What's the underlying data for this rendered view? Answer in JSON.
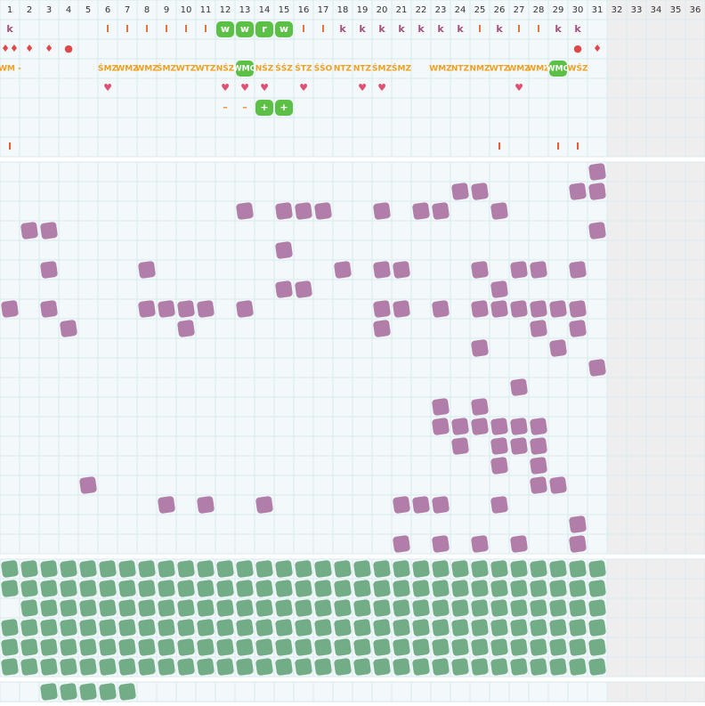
{
  "columns": [
    1,
    2,
    3,
    4,
    5,
    6,
    7,
    8,
    9,
    10,
    11,
    12,
    13,
    14,
    15,
    16,
    17,
    18,
    19,
    20,
    21,
    22,
    23,
    24,
    25,
    26,
    27,
    28,
    29,
    30,
    31,
    32,
    33,
    34,
    35,
    36
  ],
  "active_columns": 31,
  "text_colors": {
    "k": "#a2507c",
    "l": "#e0703a",
    "w": "#ffffff",
    "r": "#ffffff",
    "+": "#ffffff",
    "–": "#f08a30",
    "I": "#e0603a",
    "♦♦": "#e04848",
    "♦": "#e04848",
    "●": "#e04848",
    "♥": "#e05070"
  },
  "code_color": "#eea020",
  "top_rows": [
    [
      [
        1,
        "k"
      ],
      [
        6,
        "l"
      ],
      [
        7,
        "l"
      ],
      [
        8,
        "l"
      ],
      [
        9,
        "l"
      ],
      [
        10,
        "l"
      ],
      [
        11,
        "l"
      ],
      [
        12,
        "w",
        true
      ],
      [
        13,
        "w",
        true
      ],
      [
        14,
        "r",
        true
      ],
      [
        15,
        "w",
        true
      ],
      [
        16,
        "l"
      ],
      [
        17,
        "l"
      ],
      [
        18,
        "k"
      ],
      [
        19,
        "k"
      ],
      [
        20,
        "k"
      ],
      [
        21,
        "k"
      ],
      [
        22,
        "k"
      ],
      [
        23,
        "k"
      ],
      [
        24,
        "k"
      ],
      [
        25,
        "l"
      ],
      [
        26,
        "k"
      ],
      [
        27,
        "l"
      ],
      [
        28,
        "l"
      ],
      [
        29,
        "k"
      ],
      [
        30,
        "k"
      ]
    ],
    [
      [
        1,
        "♦♦"
      ],
      [
        2,
        "♦"
      ],
      [
        3,
        "♦"
      ],
      [
        4,
        "●"
      ],
      [
        30,
        "●"
      ],
      [
        31,
        "♦"
      ]
    ],
    [
      [
        1,
        "WM -"
      ],
      [
        6,
        "ŚMZ"
      ],
      [
        7,
        "WMZ"
      ],
      [
        8,
        "WMZ"
      ],
      [
        9,
        "ŚMZ"
      ],
      [
        10,
        "WTZ"
      ],
      [
        11,
        "WTZ"
      ],
      [
        12,
        "NŚZ"
      ],
      [
        13,
        "WMO",
        true
      ],
      [
        14,
        "NŚZ"
      ],
      [
        15,
        "ŚŚZ"
      ],
      [
        16,
        "ŚTZ"
      ],
      [
        17,
        "ŚŚO"
      ],
      [
        18,
        "NTZ"
      ],
      [
        19,
        "NTZ"
      ],
      [
        20,
        "ŚMZ"
      ],
      [
        21,
        "ŚMZ"
      ],
      [
        23,
        "WMZ"
      ],
      [
        24,
        "NTZ"
      ],
      [
        25,
        "NMZ"
      ],
      [
        26,
        "WTZ"
      ],
      [
        27,
        "WMZ"
      ],
      [
        28,
        "WMZ"
      ],
      [
        29,
        "WMO",
        true
      ],
      [
        30,
        "WŚZ"
      ]
    ],
    [
      [
        6,
        "♥"
      ],
      [
        12,
        "♥"
      ],
      [
        13,
        "♥"
      ],
      [
        14,
        "♥"
      ],
      [
        16,
        "♥"
      ],
      [
        19,
        "♥"
      ],
      [
        20,
        "♥"
      ],
      [
        27,
        "♥"
      ]
    ],
    [
      [
        12,
        "–"
      ],
      [
        13,
        "–"
      ],
      [
        14,
        "+",
        true
      ],
      [
        15,
        "+",
        true
      ]
    ],
    [],
    [
      [
        1,
        "I"
      ],
      [
        26,
        "I"
      ],
      [
        29,
        "I"
      ],
      [
        30,
        "I"
      ]
    ]
  ],
  "purple_color": "#b07ea8",
  "green_color": "#72ad88",
  "highlight_color": "#5cc046",
  "purple_rows": [
    [
      31
    ],
    [
      24,
      25,
      30,
      31
    ],
    [
      13,
      15,
      16,
      17,
      20,
      22,
      23,
      26
    ],
    [
      2,
      3,
      31
    ],
    [
      15
    ],
    [
      3,
      8,
      18,
      20,
      21,
      25,
      27,
      28,
      30
    ],
    [
      15,
      16,
      26
    ],
    [
      1,
      3,
      8,
      9,
      10,
      11,
      13,
      20,
      21,
      23,
      25,
      26,
      27,
      28,
      29,
      30
    ],
    [
      4,
      10,
      20,
      28,
      30
    ],
    [
      25,
      29
    ],
    [
      31
    ],
    [
      27
    ],
    [
      23,
      25
    ],
    [
      23,
      24,
      25,
      26,
      27,
      28
    ],
    [
      24,
      26,
      27,
      28
    ],
    [
      26,
      28
    ],
    [
      5,
      28,
      29
    ],
    [
      9,
      11,
      14,
      21,
      22,
      23,
      26
    ],
    [
      30
    ],
    [
      21,
      23,
      25,
      27,
      30
    ]
  ],
  "green_rows": [
    [
      1,
      2,
      3,
      4,
      5,
      6,
      7,
      8,
      9,
      10,
      11,
      12,
      13,
      14,
      15,
      16,
      17,
      18,
      19,
      20,
      21,
      22,
      23,
      24,
      25,
      26,
      27,
      28,
      29,
      30,
      31
    ],
    [
      1,
      2,
      3,
      4,
      5,
      6,
      7,
      8,
      9,
      10,
      11,
      12,
      13,
      14,
      15,
      16,
      17,
      18,
      19,
      20,
      21,
      22,
      23,
      24,
      25,
      26,
      27,
      28,
      29,
      30,
      31
    ],
    [
      2,
      3,
      4,
      5,
      6,
      7,
      8,
      9,
      10,
      11,
      12,
      13,
      14,
      15,
      16,
      17,
      18,
      19,
      20,
      21,
      22,
      23,
      24,
      25,
      26,
      27,
      28,
      29,
      30,
      31
    ],
    [
      1,
      2,
      3,
      4,
      5,
      6,
      7,
      8,
      9,
      10,
      11,
      12,
      13,
      14,
      15,
      16,
      17,
      18,
      19,
      20,
      21,
      22,
      23,
      24,
      25,
      26,
      27,
      28,
      29,
      30,
      31
    ],
    [
      1,
      2,
      3,
      4,
      5,
      6,
      7,
      8,
      9,
      10,
      11,
      12,
      13,
      14,
      15,
      16,
      17,
      18,
      19,
      20,
      21,
      22,
      23,
      24,
      25,
      26,
      27,
      28,
      29,
      30,
      31
    ],
    [
      1,
      2,
      3,
      4,
      5,
      6,
      7,
      8,
      9,
      10,
      11,
      12,
      13,
      14,
      15,
      16,
      17,
      18,
      19,
      20,
      21,
      22,
      23,
      24,
      25,
      26,
      27,
      28,
      29,
      30,
      31
    ]
  ],
  "bottom_rows": [
    [
      3,
      4,
      5,
      6,
      7
    ]
  ]
}
